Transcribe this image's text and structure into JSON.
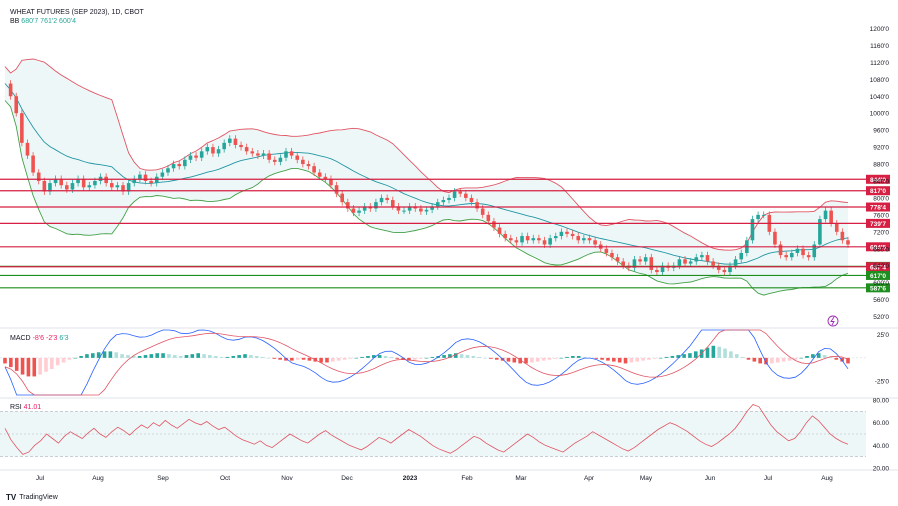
{
  "header": {
    "title": "WHEAT FUTURES (SEP 2023), 1D, CBOT",
    "bb_label": "BB",
    "bb_values": [
      "680'7",
      "761'2",
      "600'4"
    ]
  },
  "macd_legend": {
    "label": "MACD",
    "values": [
      "-8'6",
      "-2'3",
      "6'3"
    ]
  },
  "rsi_legend": {
    "label": "RSI",
    "value": "41.01"
  },
  "branding": {
    "text": "TradingView",
    "mark": "TV"
  },
  "colors": {
    "up": "#26a69a",
    "down": "#ef5350",
    "bb_upper": "#e05563",
    "bb_basis": "#2196a3",
    "bb_lower": "#43a047",
    "level_red": "#d61f42",
    "level_green": "#1e8e1e"
  },
  "chart_data": [
    {
      "type": "candlestick",
      "title": "WHEAT FUTURES (SEP 2023), 1D, CBOT",
      "ylim": [
        500,
        1220
      ],
      "y_ticks": [
        "1200'0",
        "1160'0",
        "1120'0",
        "1080'0",
        "1040'0",
        "1000'0",
        "960'0",
        "920'0",
        "880'0",
        "840'0",
        "800'0",
        "760'0",
        "720'0",
        "680'0",
        "640'0",
        "600'0",
        "560'0",
        "520'0"
      ],
      "x_ticks": [
        "Jul",
        "Aug",
        "Sep",
        "Oct",
        "Nov",
        "Dec",
        "2023",
        "Feb",
        "Mar",
        "Apr",
        "May",
        "Jun",
        "Jul",
        "Aug"
      ],
      "close_path": [
        1070,
        1040,
        1000,
        930,
        900,
        860,
        840,
        815,
        835,
        845,
        830,
        820,
        835,
        845,
        825,
        830,
        840,
        850,
        835,
        825,
        830,
        815,
        835,
        845,
        855,
        840,
        835,
        850,
        860,
        870,
        880,
        875,
        890,
        900,
        895,
        910,
        920,
        905,
        915,
        930,
        940,
        925,
        920,
        910,
        905,
        900,
        905,
        890,
        885,
        895,
        910,
        900,
        890,
        880,
        875,
        860,
        850,
        845,
        830,
        810,
        790,
        775,
        765,
        770,
        780,
        775,
        790,
        800,
        795,
        780,
        770,
        770,
        780,
        775,
        768,
        772,
        780,
        790,
        795,
        800,
        815,
        810,
        800,
        790,
        775,
        760,
        745,
        730,
        715,
        705,
        700,
        695,
        710,
        700,
        705,
        700,
        690,
        705,
        710,
        720,
        715,
        710,
        700,
        705,
        700,
        690,
        680,
        670,
        660,
        650,
        640,
        635,
        655,
        650,
        660,
        630,
        625,
        640,
        635,
        640,
        655,
        645,
        650,
        660,
        665,
        650,
        640,
        630,
        625,
        640,
        655,
        670,
        700,
        750,
        760,
        760,
        720,
        690,
        665,
        660,
        670,
        680,
        665,
        660,
        690,
        750,
        770,
        740,
        720,
        700,
        690
      ],
      "levels": [
        {
          "label": "844'0",
          "value": 844,
          "color": "red"
        },
        {
          "label": "817'0",
          "value": 817,
          "color": "red"
        },
        {
          "label": "778'4",
          "value": 778.5,
          "color": "red"
        },
        {
          "label": "739'7",
          "value": 739.875,
          "color": "red"
        },
        {
          "label": "684'5",
          "value": 684.625,
          "color": "red"
        },
        {
          "label": "638'3",
          "value": 638.375,
          "color": "green"
        },
        {
          "label": "637'4",
          "value": 637.5,
          "color": "red"
        },
        {
          "label": "617'0",
          "value": 617,
          "color": "green"
        },
        {
          "label": "587'6",
          "value": 587.75,
          "color": "green"
        }
      ]
    },
    {
      "type": "histogram",
      "name": "MACD",
      "ylim": [
        -40,
        30
      ],
      "y_ticks": [
        "25'0",
        "-25'0"
      ],
      "values": [
        -6,
        -10,
        -14,
        -18,
        -20,
        -20,
        -18,
        -15,
        -12,
        -8,
        -5,
        -2,
        0,
        2,
        4,
        5,
        6,
        7,
        7,
        6,
        4,
        3,
        2,
        2,
        3,
        4,
        5,
        5,
        4,
        3,
        2,
        3,
        4,
        5,
        4,
        3,
        2,
        1,
        1,
        2,
        3,
        4,
        3,
        2,
        1,
        0,
        -1,
        -2,
        -3,
        -3,
        -2,
        -2,
        -3,
        -4,
        -5,
        -5,
        -4,
        -3,
        -2,
        -1,
        0,
        1,
        2,
        3,
        3,
        2,
        1,
        -1,
        -2,
        -3,
        -2,
        -1,
        0,
        1,
        2,
        3,
        4,
        5,
        4,
        3,
        2,
        1,
        0,
        -1,
        -2,
        -3,
        -4,
        -5,
        -6,
        -6,
        -5,
        -4,
        -3,
        -2,
        -1,
        0,
        1,
        2,
        2,
        1,
        0,
        -1,
        -2,
        -3,
        -4,
        -5,
        -6,
        -5,
        -4,
        -3,
        -2,
        -1,
        0,
        1,
        2,
        3,
        4,
        5,
        7,
        9,
        11,
        13,
        12,
        10,
        7,
        4,
        1,
        -2,
        -4,
        -6,
        -7,
        -6,
        -5,
        -4,
        -3,
        -2,
        0,
        2,
        4,
        5,
        3,
        1,
        -2,
        -4,
        -6
      ]
    },
    {
      "type": "line",
      "name": "RSI",
      "ylim": [
        20,
        80
      ],
      "y_ticks": [
        "80.00",
        "60.00",
        "40.00",
        "20.00"
      ],
      "values": [
        55,
        45,
        38,
        32,
        34,
        40,
        44,
        50,
        46,
        42,
        48,
        52,
        49,
        46,
        51,
        55,
        50,
        47,
        52,
        56,
        53,
        49,
        54,
        58,
        55,
        60,
        57,
        62,
        58,
        55,
        59,
        63,
        60,
        58,
        61,
        57,
        54,
        56,
        52,
        48,
        45,
        43,
        41,
        44,
        40,
        38,
        42,
        46,
        50,
        47,
        44,
        42,
        46,
        50,
        53,
        49,
        46,
        43,
        40,
        38,
        36,
        39,
        43,
        47,
        45,
        42,
        46,
        50,
        54,
        51,
        48,
        44,
        40,
        37,
        35,
        33,
        36,
        40,
        44,
        48,
        46,
        42,
        39,
        36,
        34,
        38,
        42,
        46,
        50,
        47,
        43,
        40,
        38,
        36,
        34,
        38,
        42,
        45,
        48,
        52,
        49,
        46,
        43,
        40,
        37,
        35,
        38,
        42,
        46,
        50,
        54,
        57,
        60,
        58,
        55,
        52,
        48,
        44,
        41,
        39,
        42,
        46,
        50,
        55,
        62,
        70,
        76,
        74,
        66,
        58,
        52,
        48,
        44,
        46,
        52,
        60,
        66,
        62,
        56,
        50,
        46,
        43,
        41
      ]
    }
  ]
}
